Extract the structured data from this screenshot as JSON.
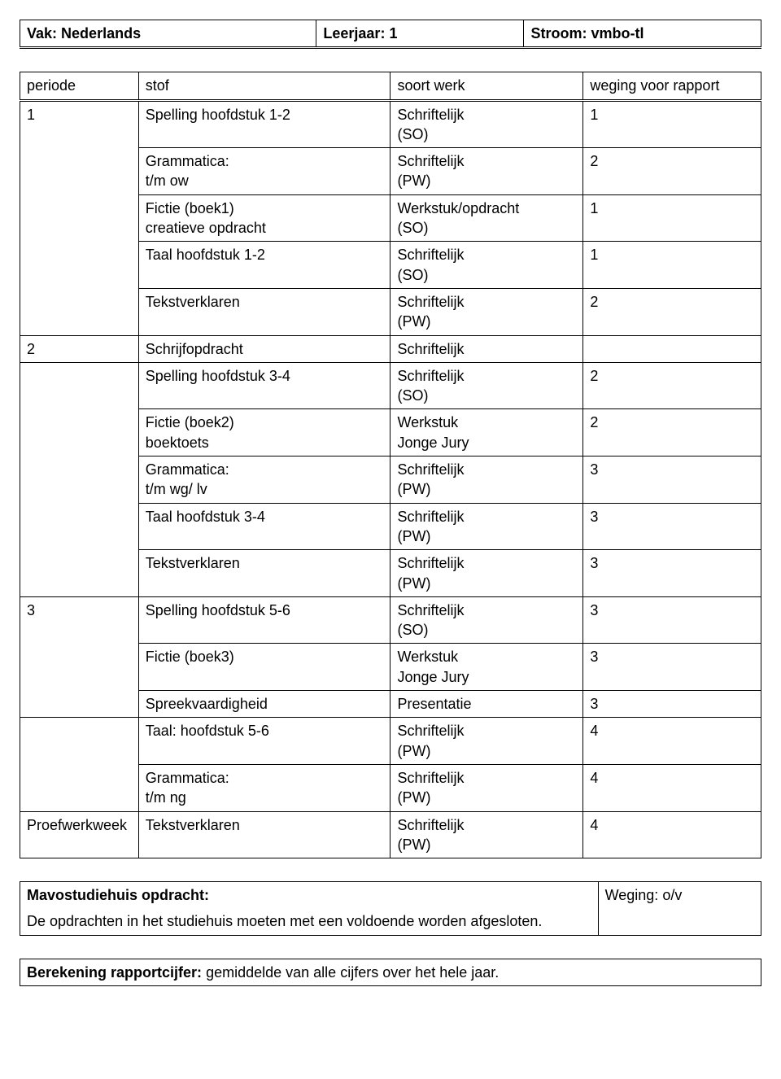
{
  "header": {
    "vak_label": "Vak:",
    "vak_value": "Nederlands",
    "leerjaar_label": "Leerjaar:",
    "leerjaar_value": "1",
    "stroom_label": "Stroom:",
    "stroom_value": "vmbo-tl"
  },
  "main": {
    "thead": {
      "periode": "periode",
      "stof": "stof",
      "soort": "soort werk",
      "weging": "weging voor rapport"
    },
    "rows": [
      {
        "periode": "1",
        "stof": "Spelling hoofdstuk 1-2",
        "soort": "Schriftelijk\n(SO)",
        "weging": "1"
      },
      {
        "periode": "",
        "stof": "Grammatica:\nt/m ow",
        "soort": "Schriftelijk\n(PW)",
        "weging": "2"
      },
      {
        "periode": "",
        "stof": "Fictie (boek1)\ncreatieve opdracht",
        "soort": "Werkstuk/opdracht\n(SO)",
        "weging": "1"
      },
      {
        "periode": "",
        "stof": "Taal hoofdstuk 1-2",
        "soort": "Schriftelijk\n(SO)",
        "weging": "1"
      },
      {
        "periode": "",
        "stof": "Tekstverklaren",
        "soort": "Schriftelijk\n(PW)",
        "weging": "2"
      },
      {
        "periode": "2",
        "stof": "Schrijfopdracht",
        "soort": "Schriftelijk\n",
        "weging": ""
      },
      {
        "periode": "",
        "stof": "Spelling hoofdstuk 3-4",
        "soort": "Schriftelijk\n(SO)",
        "weging": "2"
      },
      {
        "periode": "",
        "stof": "Fictie (boek2)\nboektoets",
        "soort": "Werkstuk\nJonge Jury",
        "weging": "2"
      },
      {
        "periode": "",
        "stof": "Grammatica:\nt/m wg/ lv",
        "soort": "Schriftelijk\n(PW)",
        "weging": "3"
      },
      {
        "periode": "",
        "stof": "Taal hoofdstuk 3-4",
        "soort": "Schriftelijk\n(PW)",
        "weging": "3"
      },
      {
        "periode": "",
        "stof": "Tekstverklaren",
        "soort": "Schriftelijk\n(PW)",
        "weging": "3"
      },
      {
        "periode": "3",
        "stof": "Spelling hoofdstuk 5-6",
        "soort": "Schriftelijk\n(SO)",
        "weging": "3"
      },
      {
        "periode": "",
        "stof": "Fictie (boek3)",
        "soort": "Werkstuk\nJonge Jury",
        "weging": "3"
      },
      {
        "periode": "",
        "stof": "Spreekvaardigheid",
        "soort": "Presentatie\n",
        "weging": "3"
      },
      {
        "periode": "",
        "stof": "Taal: hoofdstuk 5-6",
        "soort": "Schriftelijk\n(PW)",
        "weging": "4"
      },
      {
        "periode": "",
        "stof": "Grammatica:\nt/m ng",
        "soort": "Schriftelijk\n(PW)",
        "weging": "4"
      },
      {
        "periode": "Proefwerkweek",
        "stof": "Tekstverklaren",
        "soort": "Schriftelijk\n(PW)",
        "weging": "4"
      }
    ],
    "group_spans": [
      {
        "start": 0,
        "span": 5
      },
      {
        "start": 5,
        "span": 1
      },
      {
        "start": 6,
        "span": 5
      },
      {
        "start": 11,
        "span": 3
      },
      {
        "start": 14,
        "span": 2
      },
      {
        "start": 16,
        "span": 1
      }
    ]
  },
  "mavo": {
    "heading": "Mavostudiehuis opdracht:",
    "text": "De opdrachten in het studiehuis moeten met een voldoende worden afgesloten.",
    "weging_label": "Weging:",
    "weging_value": "o/v"
  },
  "calc": {
    "label": "Berekening rapportcijfer:",
    "text": "gemiddelde van alle cijfers over het hele jaar."
  }
}
